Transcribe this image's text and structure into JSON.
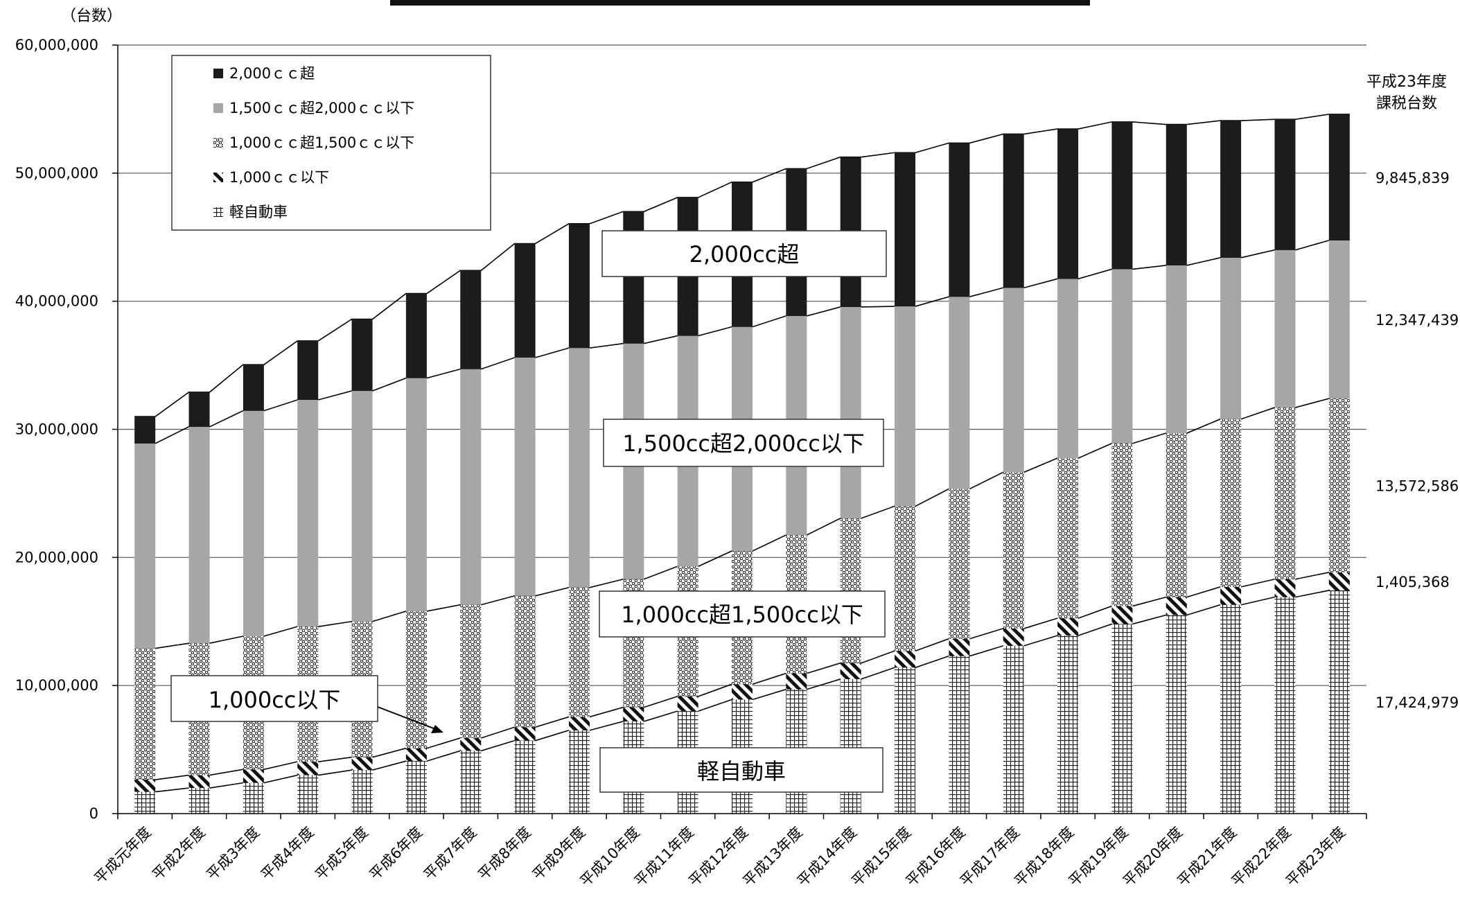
{
  "chart_data": {
    "type": "bar",
    "stacked": true,
    "y_unit_label": "（台数）",
    "ylim": [
      0,
      60000000
    ],
    "y_ticks": [
      0,
      10000000,
      20000000,
      30000000,
      40000000,
      50000000,
      60000000
    ],
    "y_tick_labels": [
      "0",
      "10,000,000",
      "20,000,000",
      "30,000,000",
      "40,000,000",
      "50,000,000",
      "60,000,000"
    ],
    "grid": true,
    "legend_placement": "top-left",
    "categories": [
      "平成元年度",
      "平成2年度",
      "平成3年度",
      "平成4年度",
      "平成5年度",
      "平成6年度",
      "平成7年度",
      "平成8年度",
      "平成9年度",
      "平成10年度",
      "平成11年度",
      "平成12年度",
      "平成13年度",
      "平成14年度",
      "平成15年度",
      "平成16年度",
      "平成17年度",
      "平成18年度",
      "平成19年度",
      "平成20年度",
      "平成21年度",
      "平成22年度",
      "平成23年度"
    ],
    "series": [
      {
        "name": "軽自動車",
        "pattern": "grid",
        "values": [
          1700000,
          2000000,
          2400000,
          3000000,
          3400000,
          4100000,
          4900000,
          5700000,
          6500000,
          7200000,
          8000000,
          8900000,
          9700000,
          10500000,
          11400000,
          12300000,
          13100000,
          13900000,
          14800000,
          15500000,
          16300000,
          16900000,
          17424979
        ]
      },
      {
        "name": "1,000ｃｃ以下",
        "pattern": "hatch",
        "values": [
          950000,
          1000000,
          1050000,
          1050000,
          1000000,
          1000000,
          1000000,
          1050000,
          1050000,
          1100000,
          1150000,
          1200000,
          1250000,
          1250000,
          1300000,
          1350000,
          1350000,
          1350000,
          1400000,
          1400000,
          1400000,
          1400000,
          1405368
        ]
      },
      {
        "name": "1,000ｃｃ超1,500ｃｃ以下",
        "pattern": "dots",
        "values": [
          10250000,
          10300000,
          10400000,
          10550000,
          10600000,
          10700000,
          10400000,
          10250000,
          10100000,
          10000000,
          10150000,
          10400000,
          10800000,
          11300000,
          11300000,
          11700000,
          12200000,
          12500000,
          12700000,
          12800000,
          13100000,
          13400000,
          13572586
        ]
      },
      {
        "name": "1,500ｃｃ超2,000ｃｃ以下",
        "pattern": "gray",
        "values": [
          16000000,
          16900000,
          17600000,
          17700000,
          18000000,
          18200000,
          18400000,
          18600000,
          18700000,
          18400000,
          18000000,
          17500000,
          17100000,
          16500000,
          15600000,
          15000000,
          14400000,
          14000000,
          13600000,
          13100000,
          12600000,
          12300000,
          12347439
        ]
      },
      {
        "name": "2,000ｃｃ超",
        "pattern": "black",
        "values": [
          2100000,
          2700000,
          3600000,
          4600000,
          5600000,
          6600000,
          7700000,
          8900000,
          9700000,
          10300000,
          10800000,
          11300000,
          11500000,
          11700000,
          12000000,
          12000000,
          12000000,
          11700000,
          11500000,
          11000000,
          10700000,
          10200000,
          9845839
        ]
      }
    ],
    "right_header": [
      "平成23年度",
      "課税台数"
    ],
    "right_labels": [
      {
        "series": 4,
        "text": "9,845,839"
      },
      {
        "series": 3,
        "text": "12,347,439"
      },
      {
        "series": 2,
        "text": "13,572,586"
      },
      {
        "series": 1,
        "text": "1,405,368"
      },
      {
        "series": 0,
        "text": "17,424,979"
      }
    ],
    "callouts": [
      "2,000cc超",
      "1,500cc超2,000cc以下",
      "1,000cc超1,500cc以下",
      "1,000cc以下",
      "軽自動車"
    ],
    "colors": {
      "black_fill": "#1c1c1c",
      "gray_fill": "#a6a6a6",
      "axis": "#000000",
      "grid": "#555555"
    }
  }
}
